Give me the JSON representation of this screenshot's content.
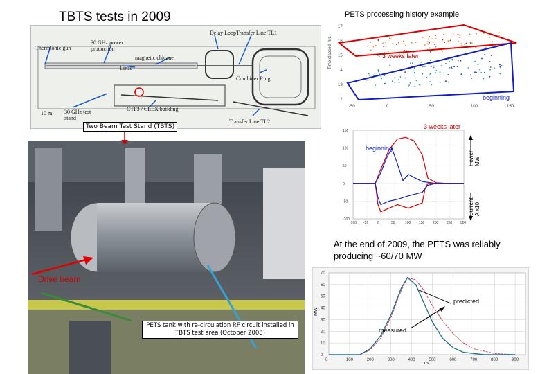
{
  "slide": {
    "title": "TBTS tests in 2009",
    "pets_history_title": "PETS processing history example",
    "weeks_later_top": "3 weeks later",
    "beginning_top": "beginning",
    "weeks_later_mid": "3 weeks later",
    "beginning_mid": "beginning",
    "power_axis": "Power, MW",
    "current_axis": "Current, A x10",
    "summary": "At the end of 2009, the PETS was reliably producing ~60/70 MW",
    "drive_beam": "Drive beam",
    "tbts_label": "Two Beam Test Stand (TBTS)",
    "photo_caption": "PETS tank with re-circulation RF circuit installed in TBTS test area (October 2008)",
    "predicted": "predicted",
    "measured": "measured",
    "mw_axis": "MW",
    "ns_axis": "ns"
  },
  "map_labels": {
    "thermionic": "Thermionic gun",
    "power30": "30 GHz power production",
    "chicane": "magnetic chicane",
    "linac": "Linac",
    "delay": "Delay Loop",
    "tl1": "Transfer Line TL1",
    "combiner": "Combiner Ring",
    "ctf3": "CTF3",
    "clex": "CLEX building",
    "tl2": "Transfer Line TL2",
    "teststand": "30 GHz test stand",
    "scale": "10 m"
  },
  "chart_data": [
    {
      "type": "line",
      "title": "",
      "xlabel": "ns",
      "ylabel": "MW",
      "xlim": [
        0,
        950
      ],
      "ylim": [
        0,
        70
      ],
      "x_ticks": [
        0,
        100,
        200,
        300,
        400,
        500,
        600,
        700,
        800,
        900
      ],
      "y_ticks": [
        0,
        10,
        20,
        30,
        40,
        50,
        60,
        70
      ],
      "series": [
        {
          "name": "predicted",
          "x": [
            0,
            150,
            200,
            250,
            300,
            350,
            380,
            420,
            460,
            500,
            550,
            600,
            650,
            700,
            750,
            800,
            900
          ],
          "values": [
            0,
            0,
            4,
            14,
            32,
            55,
            66,
            64,
            55,
            42,
            29,
            18,
            10,
            5,
            3,
            1,
            0
          ]
        },
        {
          "name": "measured",
          "x": [
            0,
            150,
            200,
            250,
            300,
            350,
            380,
            420,
            460,
            500,
            550,
            600,
            650,
            700,
            750,
            800,
            900
          ],
          "values": [
            0,
            0,
            5,
            16,
            34,
            57,
            66,
            60,
            44,
            28,
            14,
            6,
            2,
            1,
            0,
            0,
            0
          ]
        }
      ]
    },
    {
      "type": "line",
      "title": "",
      "xlabel": "",
      "ylabel": "",
      "xlim": [
        -100,
        300
      ],
      "ylim": [
        -100,
        150
      ],
      "x_ticks": [
        -100,
        -50,
        0,
        50,
        100,
        150,
        200,
        250,
        300
      ],
      "y_ticks": [
        -100,
        -50,
        0,
        50,
        100,
        150
      ],
      "series": [
        {
          "name": "power 3 weeks later",
          "x": [
            -100,
            -20,
            0,
            30,
            60,
            90,
            120,
            150,
            170,
            200,
            240,
            300
          ],
          "values": [
            0,
            0,
            40,
            95,
            125,
            130,
            120,
            80,
            15,
            2,
            0,
            0
          ]
        },
        {
          "name": "power beginning",
          "x": [
            -100,
            -20,
            0,
            20,
            40,
            60,
            80,
            100,
            150,
            200,
            300
          ],
          "values": [
            0,
            0,
            30,
            70,
            100,
            55,
            8,
            25,
            5,
            0,
            0
          ]
        },
        {
          "name": "current 3 weeks later",
          "x": [
            -100,
            -20,
            -10,
            0,
            30,
            60,
            100,
            150,
            160,
            170,
            200,
            300
          ],
          "values": [
            0,
            0,
            -60,
            -80,
            -70,
            -60,
            -70,
            -55,
            -15,
            0,
            0,
            0
          ]
        },
        {
          "name": "current beginning",
          "x": [
            -100,
            -20,
            -10,
            0,
            30,
            60,
            100,
            150,
            170,
            200,
            300
          ],
          "values": [
            0,
            0,
            -40,
            -60,
            -50,
            -45,
            -35,
            -25,
            -5,
            0,
            0
          ]
        }
      ]
    },
    {
      "type": "scatter",
      "title": "",
      "xlabel": "",
      "ylabel": "",
      "y_ticks": [
        12,
        13,
        14,
        15,
        16,
        17
      ]
    }
  ],
  "colors": {
    "red": "#d00000",
    "blue": "#1020c0",
    "grid": "#c8c8c8",
    "predicted": "#d04050",
    "measured": "#2a7090"
  }
}
